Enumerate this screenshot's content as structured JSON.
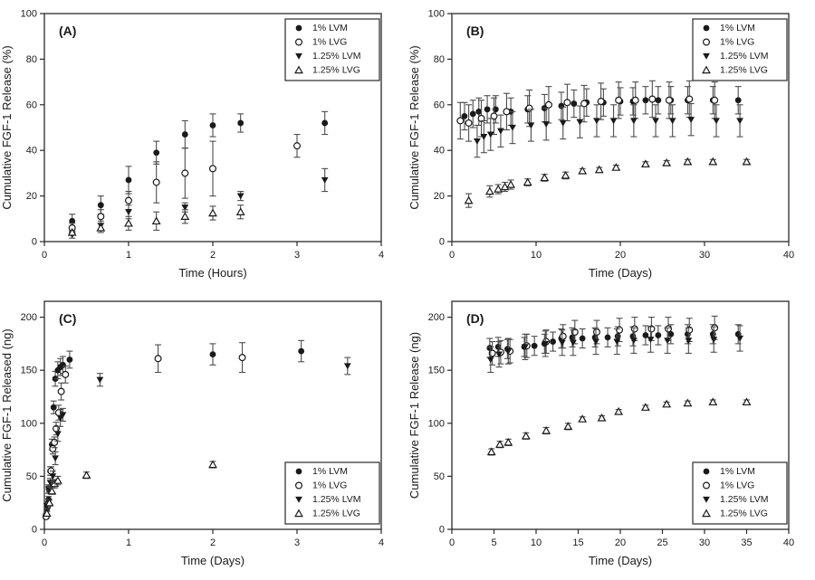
{
  "figure": {
    "background": "#ffffff",
    "box_color": "#2a2a2a",
    "marker_color": "#1a1a1a",
    "error_bar_color": "#4d4d4d",
    "legend_labels": [
      "1% LVM",
      "1% LVG",
      "1.25% LVM",
      "1.25% LVG"
    ]
  },
  "chart_data": {
    "type": "scatter",
    "description": "Cumulative FGF-1 release from alginate hydrogels, four panels with error bars",
    "panels": [
      {
        "id": "A",
        "label": "(A)",
        "xlabel": "Time (Hours)",
        "ylabel": "Cumulative FGF-1 Release (%)",
        "xlim": [
          0,
          4
        ],
        "ylim": [
          0,
          100
        ],
        "xticks": [
          0,
          1,
          2,
          3,
          4
        ],
        "yticks": [
          0,
          20,
          40,
          60,
          80,
          100
        ],
        "legend_pos": "top-right",
        "grid": false,
        "series": [
          {
            "name": "1% LVM",
            "marker": "circle-filled",
            "x": [
              0.33,
              0.67,
              1.0,
              1.33,
              1.67,
              2.0,
              2.33,
              3.33
            ],
            "y": [
              9,
              16,
              27,
              39,
              47,
              51,
              52,
              52
            ],
            "err": [
              3,
              4,
              6,
              5,
              6,
              5,
              4,
              5
            ]
          },
          {
            "name": "1% LVG",
            "marker": "circle-open",
            "x": [
              0.33,
              0.67,
              1.0,
              1.33,
              1.67,
              2.0,
              3.0
            ],
            "y": [
              6,
              11,
              18,
              26,
              30,
              32,
              42
            ],
            "err": [
              2,
              3,
              4,
              9,
              11,
              12,
              5
            ]
          },
          {
            "name": "1.25% LVM",
            "marker": "triangle-down-filled",
            "x": [
              0.33,
              0.67,
              1.0,
              1.67,
              2.33,
              3.33
            ],
            "y": [
              3,
              7,
              13,
              15,
              20,
              27
            ],
            "err": [
              1.5,
              2,
              3,
              2,
              2,
              5
            ]
          },
          {
            "name": "1.25% LVG",
            "marker": "triangle-up-open",
            "x": [
              0.33,
              0.67,
              1.0,
              1.33,
              1.67,
              2.0,
              2.33
            ],
            "y": [
              4,
              6,
              8,
              9,
              11,
              12.5,
              13
            ],
            "err": [
              1,
              2,
              3,
              4,
              3,
              3,
              3
            ]
          }
        ]
      },
      {
        "id": "B",
        "label": "(B)",
        "xlabel": "Time (Days)",
        "ylabel": "Cumulative FGF-1 Release (%)",
        "xlim": [
          0,
          40
        ],
        "ylim": [
          0,
          100
        ],
        "xticks": [
          0,
          10,
          20,
          30,
          40
        ],
        "yticks": [
          0,
          20,
          40,
          60,
          80,
          100
        ],
        "legend_pos": "top-right",
        "grid": false,
        "series": [
          {
            "name": "1% LVM",
            "marker": "circle-filled",
            "x": [
              1.5,
              2.5,
              3.2,
              4.2,
              5.2,
              7,
              9,
              11,
              13,
              14.5,
              16,
              18,
              20,
              21.5,
              23,
              24.5,
              26,
              28,
              31,
              34
            ],
            "y": [
              55,
              56,
              57,
              58,
              58,
              57,
              58,
              58.5,
              59.5,
              60.5,
              61,
              61,
              61.5,
              61.5,
              62,
              62,
              62,
              62,
              62,
              62
            ],
            "err": 6
          },
          {
            "name": "1% LVG",
            "marker": "circle-open",
            "x": [
              1,
              2,
              3.5,
              5,
              6.5,
              9.2,
              11.5,
              13.7,
              15.7,
              17.7,
              19.8,
              21.8,
              23.8,
              25.8,
              28.2,
              31.2
            ],
            "y": [
              53,
              52,
              54,
              55,
              57,
              58.5,
              60,
              61,
              60.5,
              61.5,
              62,
              62,
              62.5,
              62,
              62.5,
              62
            ],
            "err": 8
          },
          {
            "name": "1.25% LVM",
            "marker": "triangle-down-filled",
            "x": [
              3,
              3.8,
              4.6,
              5.8,
              7.2,
              9.4,
              11.2,
              13.2,
              15.2,
              17.2,
              19.2,
              21.6,
              24.2,
              26.2,
              28.4,
              31.4,
              34.2
            ],
            "y": [
              44,
              46,
              47,
              48.5,
              50,
              51,
              51.5,
              52,
              52.5,
              53,
              53,
              53,
              53,
              53,
              53.5,
              53,
              53
            ],
            "err": 7
          },
          {
            "name": "1.25% LVG",
            "marker": "triangle-up-open",
            "x": [
              2,
              4.5,
              5.5,
              6.3,
              7,
              9,
              11,
              13.5,
              15.5,
              17.5,
              19.5,
              23,
              25.5,
              28,
              31,
              35
            ],
            "y": [
              18,
              22,
              23,
              24,
              25,
              26,
              28,
              29,
              31,
              31.5,
              32.5,
              34,
              34.5,
              35,
              35,
              35
            ],
            "err": [
              3,
              2.5,
              2,
              2,
              2,
              1.5,
              1.5,
              1.5,
              1,
              1,
              1,
              1,
              1,
              1,
              1,
              1
            ]
          }
        ]
      },
      {
        "id": "C",
        "label": "(C)",
        "xlabel": "Time (Days)",
        "ylabel": "Cumulative FGF-1 Released (ng)",
        "xlim": [
          0,
          4
        ],
        "ylim": [
          0,
          215
        ],
        "xticks": [
          0,
          1,
          2,
          3,
          4
        ],
        "yticks": [
          0,
          50,
          100,
          150,
          200
        ],
        "legend_pos": "bottom-right",
        "grid": false,
        "series": [
          {
            "name": "1% LVM",
            "marker": "circle-filled",
            "x": [
              0.02,
              0.03,
              0.05,
              0.07,
              0.09,
              0.11,
              0.13,
              0.16,
              0.19,
              0.22,
              0.3,
              2.0,
              3.05
            ],
            "y": [
              13,
              19,
              28,
              55,
              80,
              115,
              142,
              150,
              153,
              155,
              160,
              165,
              168
            ],
            "err": [
              2,
              2,
              3,
              4,
              5,
              6,
              7,
              8,
              8,
              8,
              8,
              10,
              10
            ]
          },
          {
            "name": "1% LVG",
            "marker": "circle-open",
            "x": [
              0.02,
              0.04,
              0.06,
              0.08,
              0.1,
              0.12,
              0.14,
              0.17,
              0.2,
              0.25,
              1.35,
              2.35
            ],
            "y": [
              12,
              23,
              38,
              55,
              76,
              82,
              95,
              110,
              130,
              146,
              161,
              162
            ],
            "err": [
              2,
              3,
              3,
              4,
              5,
              5,
              6,
              7,
              8,
              8,
              13,
              14
            ]
          },
          {
            "name": "1.25% LVM",
            "marker": "triangle-down-filled",
            "x": [
              0.03,
              0.05,
              0.07,
              0.1,
              0.13,
              0.16,
              0.19,
              0.22,
              0.66,
              3.6
            ],
            "y": [
              22,
              38,
              44,
              50,
              67,
              90,
              105,
              108,
              141,
              154
            ],
            "err": [
              3,
              4,
              4,
              5,
              6,
              7,
              8,
              6,
              6,
              8
            ]
          },
          {
            "name": "1.25% LVG",
            "marker": "triangle-up-open",
            "x": [
              0.03,
              0.06,
              0.09,
              0.12,
              0.16,
              0.5,
              2.0
            ],
            "y": [
              15,
              25,
              36,
              43,
              46,
              51,
              61
            ],
            "err": [
              2,
              3,
              3,
              4,
              4,
              3,
              3
            ]
          }
        ]
      },
      {
        "id": "D",
        "label": "(D)",
        "xlabel": "Time (Days)",
        "ylabel": "Cumulative FGF-1 Release (ng)",
        "xlim": [
          0,
          40
        ],
        "ylim": [
          0,
          215
        ],
        "xticks": [
          0,
          5,
          10,
          15,
          20,
          25,
          30,
          35,
          40
        ],
        "yticks": [
          0,
          50,
          100,
          150,
          200
        ],
        "legend_pos": "bottom-right",
        "grid": false,
        "series": [
          {
            "name": "1% LVM",
            "marker": "circle-filled",
            "x": [
              4.5,
              5.5,
              6.6,
              8.6,
              9.8,
              11,
              12,
              13,
              14.3,
              15.5,
              17,
              18.5,
              19.7,
              21.5,
              23,
              24.5,
              26,
              28,
              31,
              34
            ],
            "y": [
              171,
              172,
              170,
              172,
              173,
              175,
              177,
              180,
              181,
              180,
              181,
              181,
              182,
              182,
              183,
              183,
              184,
              184,
              184,
              184
            ],
            "err": 9
          },
          {
            "name": "1% LVG",
            "marker": "circle-open",
            "x": [
              4.8,
              5.8,
              6.9,
              8.9,
              11.2,
              13.2,
              14.6,
              17.2,
              19.9,
              21.7,
              23.7,
              25.7,
              28.2,
              31.2
            ],
            "y": [
              166,
              167,
              168,
              173,
              177,
              182,
              186,
              186,
              188,
              189,
              189,
              189,
              188,
              190
            ],
            "err": 11
          },
          {
            "name": "1.25% LVM",
            "marker": "triangle-down-filled",
            "x": [
              4.6,
              5.6,
              6.7,
              8.7,
              11.1,
              13.1,
              14.4,
              17.1,
              19.6,
              21.6,
              23.6,
              25.6,
              28.1,
              31.1,
              34.2
            ],
            "y": [
              160,
              165,
              168,
              172,
              175,
              176,
              176,
              177,
              177,
              178,
              179,
              178,
              178,
              179,
              180
            ],
            "err": 12
          },
          {
            "name": "1.25% LVG",
            "marker": "triangle-up-open",
            "x": [
              4.7,
              5.7,
              6.7,
              8.8,
              11.2,
              13.8,
              15.5,
              17.8,
              19.8,
              23,
              25.5,
              28,
              31,
              35
            ],
            "y": [
              73,
              80,
              82,
              88,
              93,
              97,
              104,
              105,
              111,
              115,
              118,
              119,
              120,
              120
            ],
            "err": [
              3,
              3,
              3,
              3,
              3,
              3,
              2,
              2,
              2,
              2,
              2,
              2,
              2,
              2
            ]
          }
        ]
      }
    ]
  }
}
